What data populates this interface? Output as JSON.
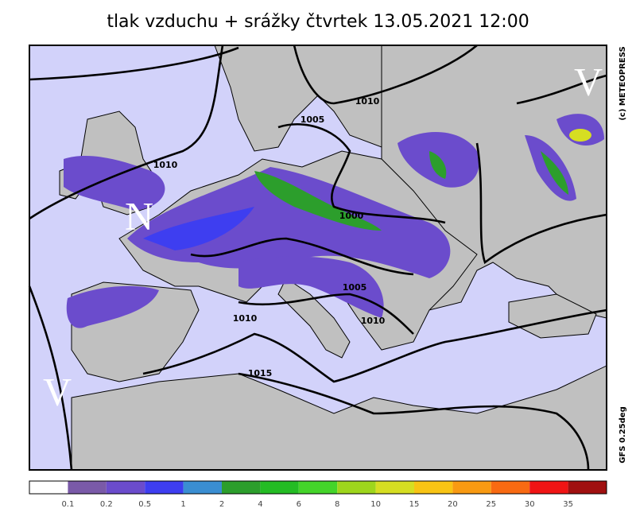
{
  "title": "tlak vzduchu + srážky čtvrtek 13.05.2021 12:00",
  "map": {
    "pressure_centers": [
      "N",
      "V",
      "V"
    ],
    "isobar_labels": [
      "1010",
      "1005",
      "1010",
      "1000",
      "1005",
      "1010",
      "1010",
      "1015"
    ],
    "credit": "(c) METEOPRESS",
    "model": "GFS 0.25deg"
  },
  "legend": {
    "colors": [
      "#ffffff",
      "#7a5aa8",
      "#6b4ccc",
      "#3e3ef0",
      "#3a8ed2",
      "#2c9e2c",
      "#24bc24",
      "#44d42a",
      "#9ed61c",
      "#d6de22",
      "#f8c414",
      "#f89a12",
      "#f86a12",
      "#f01414",
      "#a01010"
    ],
    "labels": [
      0.1,
      0.2,
      0.5,
      1,
      2,
      4,
      6,
      8,
      10,
      15,
      20,
      25,
      30,
      35
    ]
  }
}
